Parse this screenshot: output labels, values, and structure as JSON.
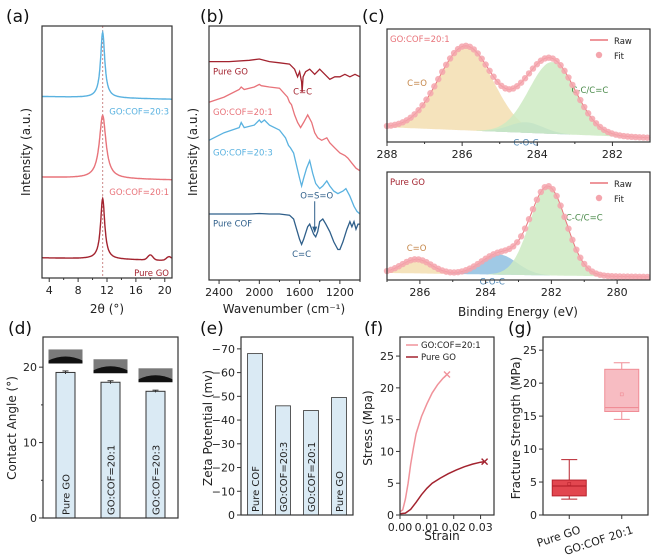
{
  "figure": {
    "panel_labels": [
      "(a)",
      "(b)",
      "(c)",
      "(d)",
      "(e)",
      "(f)",
      "(g)"
    ]
  },
  "colors": {
    "dark_red": "#a3232f",
    "light_red": "#e8737a",
    "light_blue": "#5ab2e0",
    "dark_blue": "#2f5f8a",
    "bar_fill": "#daeaf4",
    "xps_fit": "#f4a5ad",
    "xps_co": "#f3deb0",
    "xps_coc": "#8fc0e0",
    "xps_cc": "#cdeac2",
    "box_dark": "#e2464f",
    "box_light": "#f7bcc2"
  },
  "chart_data": [
    {
      "id": "a",
      "type": "line",
      "title": "",
      "xlabel": "2θ (°)",
      "ylabel": "Intensity (a.u.)",
      "xlim": [
        3,
        21
      ],
      "xticks": [
        4,
        8,
        12,
        16,
        20
      ],
      "reference_line_x": 11.4,
      "series": [
        {
          "name": "GO:COF=20:3",
          "color": "#5ab2e0",
          "peak_x": 11.4,
          "peak_width": 0.35,
          "offset": 0.72,
          "height": 0.26,
          "secondary": []
        },
        {
          "name": "GO:COF=20:1",
          "color": "#e8737a",
          "peak_x": 11.4,
          "peak_width": 0.55,
          "offset": 0.4,
          "height": 0.25,
          "secondary": []
        },
        {
          "name": "Pure GO",
          "color": "#a3232f",
          "peak_x": 11.4,
          "peak_width": 0.35,
          "offset": 0.08,
          "height": 0.24,
          "secondary": [
            [
              18.0,
              0.02
            ],
            [
              20.6,
              0.015
            ]
          ]
        }
      ]
    },
    {
      "id": "b",
      "type": "line",
      "xlabel": "Wavenumber (cm⁻¹)",
      "ylabel": "Intensity (a.u.)",
      "xlim": [
        2500,
        1000
      ],
      "xticks": [
        2400,
        2000,
        1600,
        1200
      ],
      "series": [
        {
          "name": "Pure GO",
          "color": "#a3232f",
          "points": [
            [
              2500,
              0.86
            ],
            [
              2300,
              0.86
            ],
            [
              2100,
              0.865
            ],
            [
              2000,
              0.87
            ],
            [
              1900,
              0.86
            ],
            [
              1800,
              0.855
            ],
            [
              1700,
              0.85
            ],
            [
              1650,
              0.83
            ],
            [
              1620,
              0.8
            ],
            [
              1600,
              0.82
            ],
            [
              1580,
              0.78
            ],
            [
              1575,
              0.74
            ],
            [
              1565,
              0.8
            ],
            [
              1540,
              0.82
            ],
            [
              1500,
              0.83
            ],
            [
              1450,
              0.81
            ],
            [
              1400,
              0.83
            ],
            [
              1350,
              0.81
            ],
            [
              1300,
              0.79
            ],
            [
              1250,
              0.8
            ],
            [
              1200,
              0.8
            ],
            [
              1150,
              0.81
            ],
            [
              1100,
              0.8
            ],
            [
              1050,
              0.81
            ],
            [
              1000,
              0.8
            ]
          ]
        },
        {
          "name": "GO:COF=20:1",
          "color": "#e8737a",
          "points": [
            [
              2500,
              0.7
            ],
            [
              2350,
              0.72
            ],
            [
              2200,
              0.75
            ],
            [
              2180,
              0.76
            ],
            [
              2150,
              0.75
            ],
            [
              2050,
              0.76
            ],
            [
              2000,
              0.77
            ],
            [
              1980,
              0.765
            ],
            [
              1900,
              0.76
            ],
            [
              1800,
              0.755
            ],
            [
              1720,
              0.72
            ],
            [
              1700,
              0.7
            ],
            [
              1680,
              0.69
            ],
            [
              1650,
              0.65
            ],
            [
              1620,
              0.62
            ],
            [
              1590,
              0.6
            ],
            [
              1560,
              0.62
            ],
            [
              1520,
              0.65
            ],
            [
              1480,
              0.62
            ],
            [
              1450,
              0.58
            ],
            [
              1420,
              0.56
            ],
            [
              1380,
              0.55
            ],
            [
              1330,
              0.56
            ],
            [
              1300,
              0.54
            ],
            [
              1250,
              0.52
            ],
            [
              1200,
              0.5
            ],
            [
              1150,
              0.49
            ],
            [
              1120,
              0.48
            ],
            [
              1080,
              0.46
            ],
            [
              1040,
              0.44
            ],
            [
              1000,
              0.43
            ]
          ]
        },
        {
          "name": "GO:COF=20:3",
          "color": "#5ab2e0",
          "points": [
            [
              2500,
              0.55
            ],
            [
              2350,
              0.58
            ],
            [
              2200,
              0.6
            ],
            [
              2180,
              0.62
            ],
            [
              2150,
              0.6
            ],
            [
              2050,
              0.61
            ],
            [
              2000,
              0.63
            ],
            [
              1980,
              0.62
            ],
            [
              1950,
              0.63
            ],
            [
              1900,
              0.61
            ],
            [
              1800,
              0.59
            ],
            [
              1740,
              0.56
            ],
            [
              1710,
              0.53
            ],
            [
              1690,
              0.52
            ],
            [
              1660,
              0.5
            ],
            [
              1630,
              0.45
            ],
            [
              1600,
              0.4
            ],
            [
              1580,
              0.37
            ],
            [
              1560,
              0.4
            ],
            [
              1530,
              0.44
            ],
            [
              1500,
              0.47
            ],
            [
              1470,
              0.42
            ],
            [
              1440,
              0.38
            ],
            [
              1400,
              0.36
            ],
            [
              1370,
              0.37
            ],
            [
              1330,
              0.39
            ],
            [
              1300,
              0.37
            ],
            [
              1260,
              0.35
            ],
            [
              1220,
              0.34
            ],
            [
              1170,
              0.35
            ],
            [
              1140,
              0.36
            ],
            [
              1100,
              0.33
            ],
            [
              1060,
              0.29
            ],
            [
              1030,
              0.27
            ],
            [
              1000,
              0.26
            ]
          ]
        },
        {
          "name": "Pure COF",
          "color": "#2f5f8a",
          "points": [
            [
              2500,
              0.26
            ],
            [
              2300,
              0.26
            ],
            [
              2100,
              0.26
            ],
            [
              2000,
              0.262
            ],
            [
              1900,
              0.26
            ],
            [
              1800,
              0.26
            ],
            [
              1700,
              0.255
            ],
            [
              1660,
              0.24
            ],
            [
              1630,
              0.2
            ],
            [
              1600,
              0.16
            ],
            [
              1580,
              0.14
            ],
            [
              1560,
              0.16
            ],
            [
              1520,
              0.21
            ],
            [
              1500,
              0.22
            ],
            [
              1480,
              0.2
            ],
            [
              1460,
              0.18
            ],
            [
              1440,
              0.17
            ],
            [
              1420,
              0.19
            ],
            [
              1400,
              0.23
            ],
            [
              1370,
              0.24
            ],
            [
              1340,
              0.22
            ],
            [
              1300,
              0.19
            ],
            [
              1260,
              0.15
            ],
            [
              1220,
              0.12
            ],
            [
              1200,
              0.12
            ],
            [
              1170,
              0.15
            ],
            [
              1130,
              0.2
            ],
            [
              1100,
              0.23
            ],
            [
              1080,
              0.21
            ],
            [
              1060,
              0.23
            ],
            [
              1040,
              0.2
            ],
            [
              1020,
              0.22
            ],
            [
              1000,
              0.22
            ]
          ]
        }
      ],
      "annotations": [
        {
          "text": "C=C",
          "x": 1570,
          "y": 0.73,
          "color": "#a3232f"
        },
        {
          "text": "O=S=O",
          "x": 1430,
          "y": 0.32,
          "color": "#2f5f8a"
        },
        {
          "text": "C=C",
          "x": 1580,
          "y": 0.09,
          "color": "#2f5f8a"
        }
      ],
      "series_labels": [
        {
          "text": "Pure GO",
          "x": 2460,
          "y": 0.81,
          "color": "#a3232f"
        },
        {
          "text": "GO:COF=20:1",
          "x": 2460,
          "y": 0.65,
          "color": "#e8737a"
        },
        {
          "text": "GO:COF=20:3",
          "x": 2460,
          "y": 0.49,
          "color": "#5ab2e0"
        },
        {
          "text": "Pure COF",
          "x": 2460,
          "y": 0.21,
          "color": "#2f5f8a"
        }
      ]
    },
    {
      "id": "c-top",
      "type": "area",
      "title": "GO:COF=20:1",
      "xlim": [
        288,
        281
      ],
      "xticks": [
        288,
        286,
        284,
        282
      ],
      "legend": [
        "Raw",
        "Fit"
      ],
      "legend_position": "top-right",
      "baseline": {
        "left": 0.12,
        "right": 0.02
      },
      "components": [
        {
          "name": "C=O",
          "center": 285.9,
          "sigma": 0.72,
          "amp": 0.8,
          "color": "#f3deb0",
          "label_x": 287.2,
          "label_y": 0.4
        },
        {
          "name": "C-O-C",
          "center": 284.3,
          "sigma": 0.45,
          "amp": 0.1,
          "color": "#8fc0e0",
          "label_x": 284.3,
          "label_y": -0.12
        },
        {
          "name": "C-C/C=C",
          "center": 283.6,
          "sigma": 0.62,
          "amp": 0.68,
          "color": "#cdeac2",
          "label_x": 282.6,
          "label_y": 0.4
        }
      ]
    },
    {
      "id": "c-bottom",
      "type": "area",
      "title": "Pure GO",
      "xlabel": "Binding Energy (eV)",
      "xlim": [
        287,
        279
      ],
      "xticks": [
        286,
        284,
        282,
        280
      ],
      "legend": [
        "Raw",
        "Fit"
      ],
      "legend_position": "top-right",
      "baseline": {
        "left": 0.05,
        "right": 0.01
      },
      "components": [
        {
          "name": "C=O",
          "center": 286.1,
          "sigma": 0.45,
          "amp": 0.14,
          "color": "#f3deb0",
          "label_x": 286.1,
          "label_y": 0.22
        },
        {
          "name": "C-O-C",
          "center": 283.6,
          "sigma": 0.55,
          "amp": 0.2,
          "color": "#8fc0e0",
          "label_x": 283.8,
          "label_y": -0.1
        },
        {
          "name": "C-C/C=C",
          "center": 282.1,
          "sigma": 0.55,
          "amp": 0.88,
          "color": "#cdeac2",
          "label_x": 281.0,
          "label_y": 0.55
        }
      ]
    },
    {
      "id": "d",
      "type": "bar",
      "ylabel": "Contact Angle (°)",
      "ylim": [
        0,
        24
      ],
      "yticks": [
        0,
        10,
        20
      ],
      "categories": [
        "Pure GO",
        "GO:COF=20:1",
        "GO:COF=20:3"
      ],
      "values": [
        19.3,
        18.0,
        16.8
      ],
      "errors": [
        0.2,
        0.2,
        0.15
      ]
    },
    {
      "id": "e",
      "type": "bar",
      "ylabel": "Zeta Potential (mv)",
      "ylim": [
        0,
        -75
      ],
      "yticks": [
        0,
        -10,
        -20,
        -30,
        -40,
        -50,
        -60,
        -70
      ],
      "categories": [
        "Pure COF",
        "GO:COF=20:3",
        "GO:COF=20:1",
        "Pure GO"
      ],
      "values": [
        -68,
        -46,
        -44,
        -49.5
      ]
    },
    {
      "id": "f",
      "type": "line",
      "xlabel": "Strain",
      "ylabel": "Stress (Mpa)",
      "xlim": [
        0,
        0.035
      ],
      "ylim": [
        0,
        28
      ],
      "xticks": [
        0.0,
        0.01,
        0.02,
        0.03
      ],
      "yticks": [
        0,
        5,
        10,
        15,
        20,
        25
      ],
      "legend_position": "top-left",
      "series": [
        {
          "name": "GO:COF=20:1",
          "color": "#f0929a",
          "points": [
            [
              0,
              0.5
            ],
            [
              0.001,
              0.8
            ],
            [
              0.002,
              2.5
            ],
            [
              0.003,
              5
            ],
            [
              0.004,
              8
            ],
            [
              0.005,
              10.5
            ],
            [
              0.006,
              12.8
            ],
            [
              0.008,
              15.5
            ],
            [
              0.01,
              17.5
            ],
            [
              0.012,
              19.2
            ],
            [
              0.014,
              20.5
            ],
            [
              0.016,
              21.5
            ],
            [
              0.0175,
              22.1
            ]
          ],
          "break_point": [
            0.0175,
            22.1
          ]
        },
        {
          "name": "Pure GO",
          "color": "#a3232f",
          "points": [
            [
              0,
              0.2
            ],
            [
              0.002,
              0.3
            ],
            [
              0.004,
              0.9
            ],
            [
              0.006,
              2
            ],
            [
              0.008,
              3.2
            ],
            [
              0.01,
              4.2
            ],
            [
              0.012,
              5
            ],
            [
              0.015,
              5.8
            ],
            [
              0.018,
              6.5
            ],
            [
              0.021,
              7.1
            ],
            [
              0.024,
              7.6
            ],
            [
              0.027,
              8.0
            ],
            [
              0.03,
              8.3
            ],
            [
              0.0315,
              8.4
            ]
          ],
          "break_point": [
            0.0315,
            8.4
          ]
        }
      ]
    },
    {
      "id": "g",
      "type": "box",
      "ylabel": "Fracture Strength (MPa)",
      "ylim": [
        0,
        27
      ],
      "yticks": [
        0,
        5,
        10,
        15,
        20,
        25
      ],
      "categories": [
        "Pure GO",
        "GO:COF 20:1"
      ],
      "boxes": [
        {
          "name": "Pure GO",
          "min": 2.4,
          "q1": 2.9,
          "median": 4.4,
          "q3": 5.3,
          "max": 8.4,
          "mean": 4.7,
          "color": "#e2464f",
          "edge": "#b8232d"
        },
        {
          "name": "GO:COF 20:1",
          "min": 14.5,
          "q1": 15.7,
          "median": 16.3,
          "q3": 22.1,
          "max": 23.1,
          "mean": 18.3,
          "color": "#f7bcc2",
          "edge": "#f08d96"
        }
      ]
    }
  ]
}
